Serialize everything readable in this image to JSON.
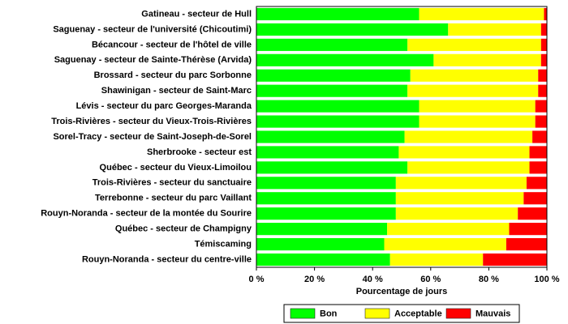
{
  "chart_data": {
    "type": "stacked-bar-horizontal",
    "x_label": "Pourcentage de jours",
    "categories": [
      "Gatineau - secteur de Hull",
      "Saguenay - secteur de l'université (Chicoutimi)",
      "Bécancour - secteur de l'hôtel de ville",
      "Saguenay - secteur de Sainte-Thérèse (Arvida)",
      "Brossard - secteur du parc Sorbonne",
      "Shawinigan - secteur de Saint-Marc",
      "Lévis - secteur du parc Georges-Maranda",
      "Trois-Rivières - secteur du Vieux-Trois-Rivières",
      "Sorel-Tracy - secteur de Saint-Joseph-de-Sorel",
      "Sherbrooke - secteur est",
      "Québec - secteur du Vieux-Limoilou",
      "Trois-Rivières - secteur du sanctuaire",
      "Terrebonne - secteur du parc Vaillant",
      "Rouyn-Noranda - secteur de la montée du Sourire",
      "Québec - secteur de Champigny",
      "Témiscaming",
      "Rouyn-Noranda - secteur du centre-ville"
    ],
    "series": [
      {
        "name": "Bon",
        "color": "#00ff00",
        "values": [
          56,
          66,
          52,
          61,
          53,
          52,
          56,
          56,
          51,
          49,
          52,
          48,
          48,
          48,
          45,
          44,
          46
        ]
      },
      {
        "name": "Acceptable",
        "color": "#ffff00",
        "values": [
          43,
          32,
          46,
          37,
          44,
          45,
          40,
          40,
          44,
          45,
          42,
          45,
          44,
          42,
          42,
          42,
          32
        ]
      },
      {
        "name": "Mauvais",
        "color": "#ff0000",
        "values": [
          1,
          2,
          2,
          2,
          3,
          3,
          4,
          4,
          5,
          6,
          6,
          7,
          8,
          10,
          13,
          14,
          22
        ]
      }
    ],
    "xlim": [
      0,
      100
    ],
    "xticks": [
      {
        "value": 0,
        "label": "0 %"
      },
      {
        "value": 20,
        "label": "20 %"
      },
      {
        "value": 40,
        "label": "40 %"
      },
      {
        "value": 60,
        "label": "60 %"
      },
      {
        "value": 80,
        "label": "80 %"
      },
      {
        "value": 100,
        "label": "100 %"
      }
    ],
    "legend": "bottom"
  }
}
